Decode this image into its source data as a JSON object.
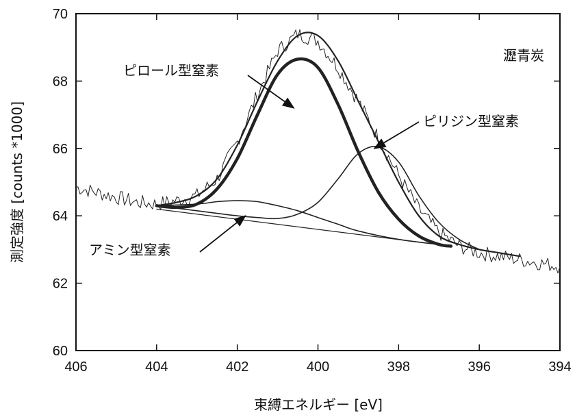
{
  "chart_data": {
    "type": "line",
    "title": "",
    "xlabel": "束縛エネルギー [eV]",
    "ylabel": "測定強度 [counts *1000]",
    "xlim": [
      406,
      394
    ],
    "ylim": [
      60,
      70
    ],
    "x_reversed": true,
    "grid": false,
    "x_ticks": [
      406,
      404,
      402,
      400,
      398,
      396,
      394
    ],
    "y_ticks": [
      60,
      62,
      64,
      66,
      68,
      70
    ],
    "sample_label": "瀝青炭",
    "series": [
      {
        "kind": "measured",
        "color": "#222222",
        "x": [
          406.0,
          405.5,
          405.0,
          404.5,
          404.0,
          403.5,
          403.0,
          402.5,
          402.0,
          401.5,
          401.0,
          400.5,
          400.0,
          399.5,
          399.0,
          398.5,
          398.0,
          397.5,
          397.0,
          396.5,
          396.0,
          395.5,
          395.0,
          394.5,
          394.0
        ],
        "y": [
          64.85,
          64.7,
          64.55,
          64.4,
          64.35,
          64.45,
          64.6,
          65.1,
          66.2,
          67.6,
          68.9,
          69.4,
          69.2,
          68.4,
          67.4,
          66.3,
          65.2,
          64.2,
          63.5,
          63.1,
          62.9,
          62.8,
          62.7,
          62.6,
          62.5
        ]
      },
      {
        "kind": "fit-envelope",
        "color": "#222222",
        "x": [
          404.0,
          403.5,
          403.0,
          402.5,
          402.0,
          401.5,
          401.0,
          400.5,
          400.0,
          399.5,
          399.0,
          398.5,
          398.0,
          397.5,
          397.0,
          396.5,
          396.0,
          395.5,
          395.0
        ],
        "y": [
          64.3,
          64.4,
          64.6,
          65.1,
          66.1,
          67.4,
          68.6,
          69.35,
          69.35,
          68.6,
          67.4,
          66.2,
          65.0,
          64.0,
          63.4,
          63.15,
          63.0,
          62.9,
          62.8
        ]
      },
      {
        "kind": "component-pyrrole",
        "color": "#222222",
        "x": [
          404.0,
          403.5,
          403.0,
          402.5,
          402.0,
          401.5,
          401.0,
          400.5,
          400.0,
          399.5,
          399.0,
          398.5,
          398.0,
          397.5,
          397.0,
          396.7
        ],
        "y": [
          64.3,
          64.25,
          64.35,
          64.8,
          65.7,
          67.0,
          68.2,
          68.65,
          68.4,
          67.3,
          65.9,
          64.7,
          63.9,
          63.4,
          63.15,
          63.1
        ]
      },
      {
        "kind": "component-pyridine",
        "color": "#222222",
        "x": [
          404.0,
          403.0,
          402.0,
          401.5,
          401.0,
          400.5,
          400.0,
          399.5,
          399.0,
          398.5,
          398.0,
          397.5,
          397.0,
          396.5,
          396.0
        ],
        "y": [
          64.3,
          64.15,
          64.0,
          63.95,
          63.92,
          64.05,
          64.4,
          65.1,
          65.85,
          66.05,
          65.6,
          64.6,
          63.8,
          63.3,
          63.0
        ]
      },
      {
        "kind": "component-amine",
        "color": "#222222",
        "x": [
          404.0,
          403.0,
          402.5,
          402.0,
          401.5,
          401.0,
          400.5,
          400.0,
          399.5,
          399.0,
          398.0,
          397.0,
          396.7
        ],
        "y": [
          64.3,
          64.35,
          64.42,
          64.45,
          64.42,
          64.3,
          64.15,
          63.95,
          63.75,
          63.55,
          63.3,
          63.15,
          63.12
        ]
      },
      {
        "kind": "baseline",
        "color": "#222222",
        "x": [
          404.0,
          396.7
        ],
        "y": [
          64.2,
          63.1
        ]
      }
    ],
    "annotations": [
      {
        "text": "ピロール型窒素",
        "arrow_to": [
          400.6,
          67.2
        ]
      },
      {
        "text": "ピリジン型窒素",
        "arrow_to": [
          398.6,
          66.0
        ]
      },
      {
        "text": "アミン型窒素",
        "arrow_to": [
          401.8,
          64.0
        ]
      }
    ]
  }
}
